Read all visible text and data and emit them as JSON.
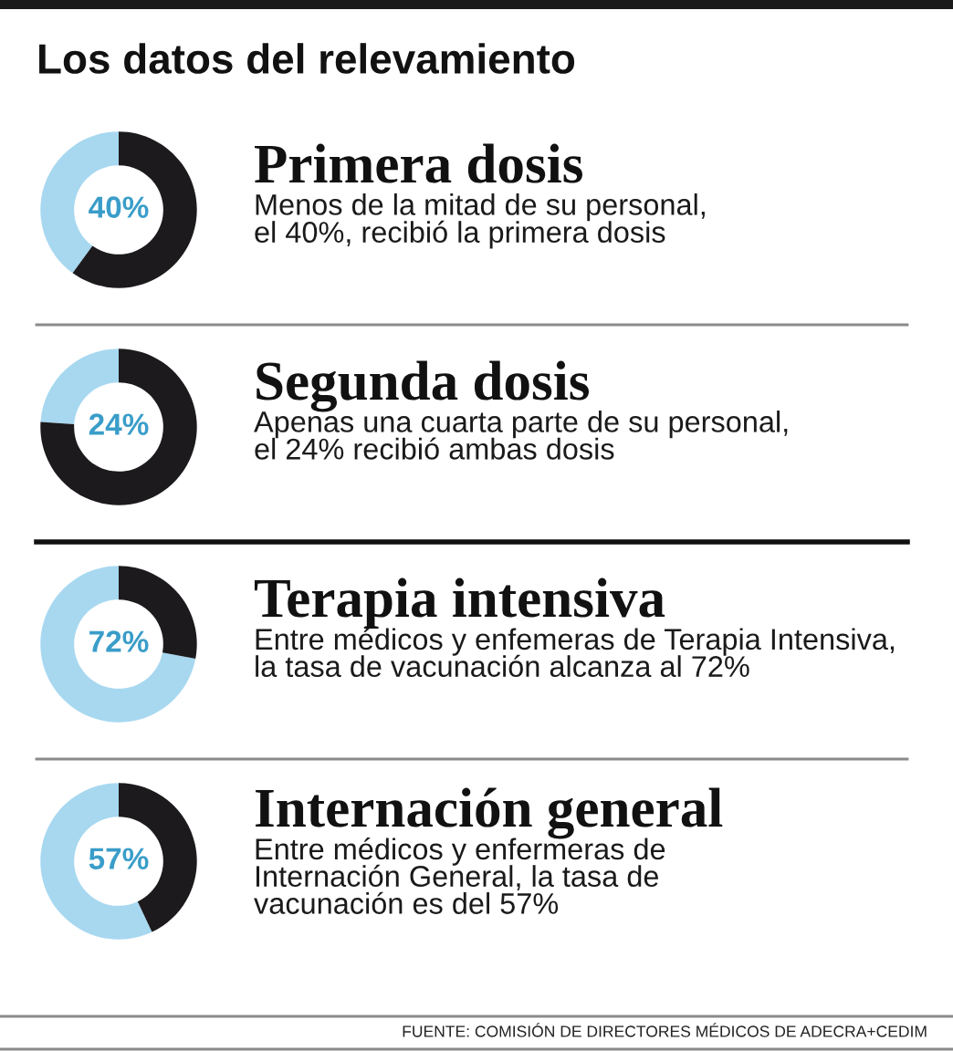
{
  "chart_data": [
    {
      "type": "other",
      "title": "Los datos del relevamiento"
    },
    {
      "type": "donut",
      "title": "Primera dosis",
      "subtitle": "Menos de la mitad de su personal,\nel 40%, recibió la primera dosis",
      "categories": [
        null,
        null
      ],
      "values": [
        40,
        60
      ],
      "colors": [
        "#a7d8f0",
        "#1c1a1d"
      ],
      "value_labels": [
        "40%",
        null
      ]
    },
    {
      "type": "donut",
      "title": "Segunda dosis",
      "subtitle": "Apenas una cuarta parte de su personal,\nel 24% recibió ambas dosis",
      "categories": [
        null,
        null
      ],
      "values": [
        24,
        76
      ],
      "colors": [
        "#a7d8f0",
        "#1c1a1d"
      ],
      "value_labels": [
        "24%",
        null
      ]
    },
    {
      "type": "donut",
      "title": "Terapia intensiva",
      "subtitle": "Entre médicos y enfemeras de Terapia Intensiva,\nla tasa de vacunación alcanza al 72%",
      "categories": [
        null,
        null
      ],
      "values": [
        72,
        28
      ],
      "colors": [
        "#a7d8f0",
        "#1c1a1d"
      ],
      "value_labels": [
        "72%",
        null
      ]
    },
    {
      "type": "donut",
      "title": "Internación general",
      "subtitle": "Entre médicos y enfermeras de\nInternación General, la tasa de\nvacunación es del 57%",
      "categories": [
        null,
        null
      ],
      "values": [
        57,
        43
      ],
      "colors": [
        "#a7d8f0",
        "#1c1a1d"
      ],
      "value_labels": [
        "57%",
        null
      ]
    },
    {
      "type": "other",
      "annotations": [
        "FUENTE: COMISIÓN DE DIRECTORES MÉDICOS DE ADECRA+CEDIM"
      ]
    }
  ]
}
